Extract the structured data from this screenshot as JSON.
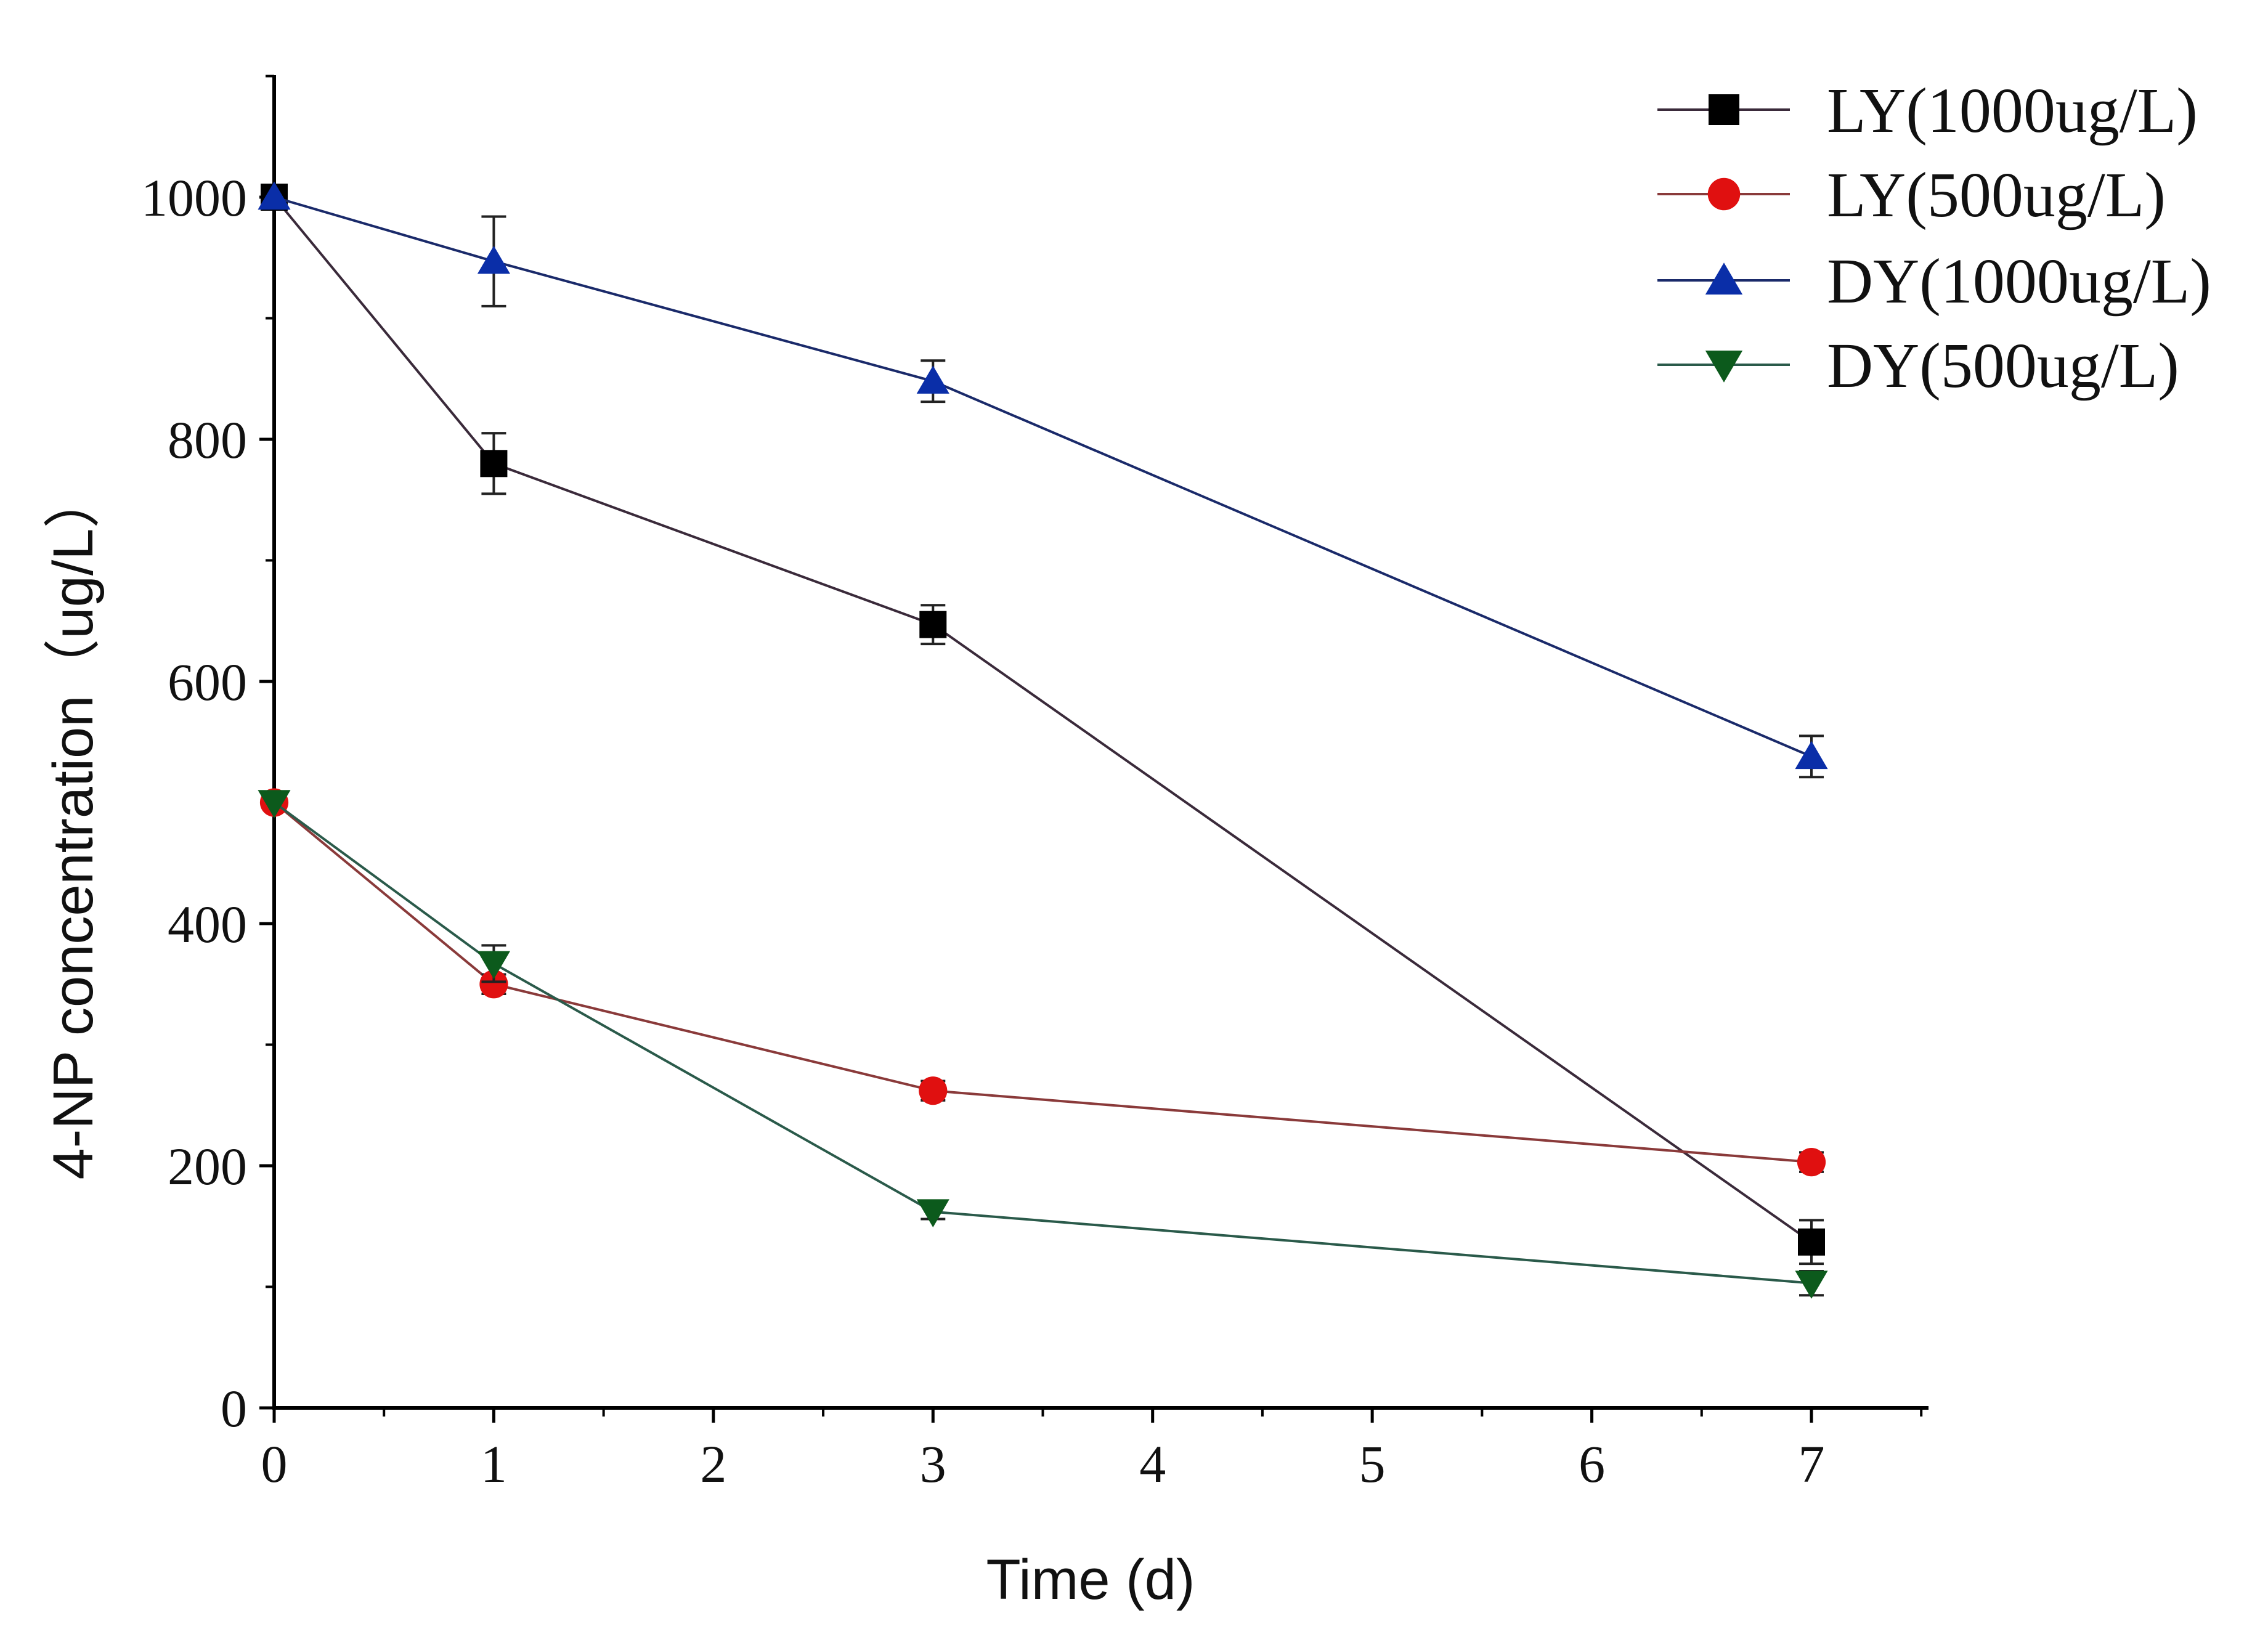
{
  "chart_data": {
    "type": "line",
    "title": "",
    "xlabel": "Time (d)",
    "ylabel": "4-NP concentration（ug/L）",
    "xlim": [
      0,
      7.5
    ],
    "ylim": [
      0,
      1100
    ],
    "x_ticks": [
      0,
      1,
      2,
      3,
      4,
      5,
      6,
      7
    ],
    "y_ticks": [
      0,
      200,
      400,
      600,
      800,
      1000
    ],
    "grid": false,
    "legend_position": "top-right",
    "series": [
      {
        "name": "LY(1000ug/L)",
        "color": "#000000",
        "line_color": "#3a2a3a",
        "marker": "square",
        "x": [
          0,
          1,
          3,
          7
        ],
        "y": [
          1000,
          780,
          647,
          137
        ],
        "error": [
          0,
          25,
          16,
          18
        ]
      },
      {
        "name": "LY(500ug/L)",
        "color": "#e01010",
        "line_color": "#8a3a3a",
        "marker": "circle",
        "x": [
          0,
          1,
          3,
          7
        ],
        "y": [
          500,
          350,
          262,
          203
        ],
        "error": [
          0,
          8,
          8,
          8
        ]
      },
      {
        "name": "DY(1000ug/L)",
        "color": "#0a2ea8",
        "line_color": "#1a2a6a",
        "marker": "triangle-up",
        "x": [
          0,
          1,
          3,
          7
        ],
        "y": [
          1000,
          947,
          848,
          538
        ],
        "error": [
          0,
          37,
          17,
          17
        ]
      },
      {
        "name": "DY(500ug/L)",
        "color": "#0c5a1c",
        "line_color": "#2a5a4a",
        "marker": "triangle-down",
        "x": [
          0,
          1,
          3,
          7
        ],
        "y": [
          500,
          367,
          162,
          103
        ],
        "error": [
          0,
          15,
          6,
          10
        ]
      }
    ]
  }
}
